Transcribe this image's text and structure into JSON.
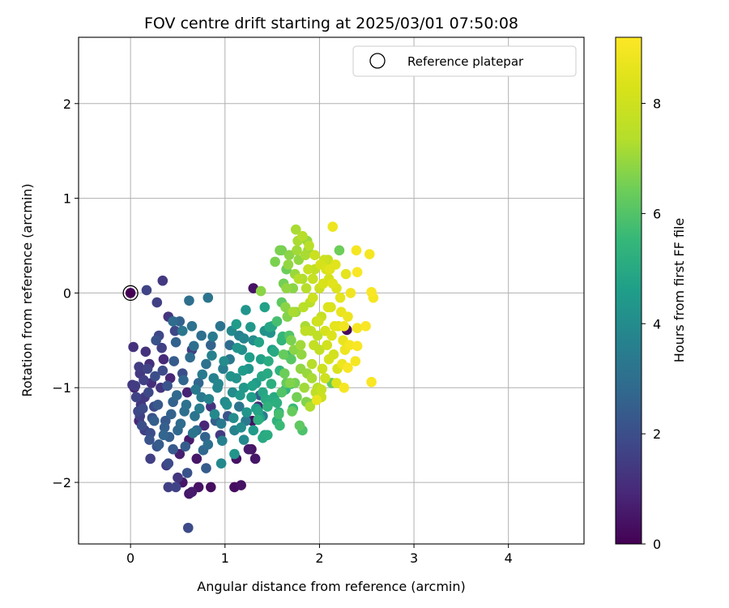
{
  "chart_data": {
    "type": "scatter",
    "title": "FOV centre drift starting at 2025/03/01 07:50:08",
    "xlabel": "Angular distance from reference (arcmin)",
    "ylabel": "Rotation from reference (arcmin)",
    "xlim": [
      -0.55,
      4.8
    ],
    "ylim": [
      -2.65,
      2.7
    ],
    "xticks": [
      0,
      1,
      2,
      3,
      4
    ],
    "yticks": [
      -2,
      -1,
      0,
      1,
      2
    ],
    "grid": true,
    "legend": {
      "placement": "top-right",
      "entries": [
        "Reference platepar"
      ]
    },
    "colorbar": {
      "label": "Hours from first FF file",
      "range": [
        0,
        9.2
      ],
      "ticks": [
        0,
        2,
        4,
        6,
        8
      ],
      "colormap": "viridis"
    },
    "reference_point": {
      "x": 0,
      "y": 0,
      "label": "Reference platepar"
    },
    "points_c": [
      [
        0.03,
        -0.57,
        1.2
      ],
      [
        0.05,
        -0.98,
        1.5
      ],
      [
        0.08,
        -1.25,
        1.8
      ],
      [
        0.1,
        -1.3,
        1.6
      ],
      [
        0.12,
        -1.4,
        2.0
      ],
      [
        0.15,
        -1.1,
        1.4
      ],
      [
        0.18,
        -0.8,
        1.7
      ],
      [
        0.2,
        -1.55,
        2.2
      ],
      [
        0.22,
        -0.95,
        1.1
      ],
      [
        0.25,
        -1.2,
        1.9
      ],
      [
        0.27,
        -0.5,
        2.1
      ],
      [
        0.3,
        -1.6,
        2.4
      ],
      [
        0.32,
        -1.0,
        1.3
      ],
      [
        0.35,
        -0.7,
        1.0
      ],
      [
        0.37,
        -1.35,
        2.3
      ],
      [
        0.4,
        -1.8,
        1.9
      ],
      [
        0.42,
        -0.9,
        0.9
      ],
      [
        0.45,
        -1.15,
        2.6
      ],
      [
        0.47,
        -0.4,
        1.8
      ],
      [
        0.5,
        -1.45,
        2.8
      ],
      [
        0.52,
        -1.7,
        0.7
      ],
      [
        0.55,
        -0.85,
        2.0
      ],
      [
        0.57,
        -1.25,
        3.0
      ],
      [
        0.6,
        -1.05,
        0.8
      ],
      [
        0.62,
        -1.55,
        0.6
      ],
      [
        0.65,
        -0.6,
        1.5
      ],
      [
        0.68,
        -1.3,
        3.2
      ],
      [
        0.7,
        -1.75,
        0.5
      ],
      [
        0.72,
        -0.95,
        2.7
      ],
      [
        0.75,
        -1.1,
        3.4
      ],
      [
        0.78,
        -1.4,
        0.9
      ],
      [
        0.8,
        -0.75,
        3.1
      ],
      [
        0.82,
        -1.6,
        3.0
      ],
      [
        0.85,
        -1.2,
        1.2
      ],
      [
        0.88,
        -0.9,
        3.6
      ],
      [
        0.9,
        -1.35,
        2.5
      ],
      [
        0.92,
        -1.0,
        3.8
      ],
      [
        0.95,
        -1.5,
        1.4
      ],
      [
        0.98,
        -0.8,
        3.5
      ],
      [
        1.0,
        -1.15,
        3.9
      ],
      [
        1.03,
        -1.3,
        2.2
      ],
      [
        1.05,
        -0.7,
        3.3
      ],
      [
        1.08,
        -1.05,
        4.0
      ],
      [
        1.1,
        -1.45,
        3.7
      ],
      [
        1.12,
        -0.9,
        4.2
      ],
      [
        1.15,
        -1.2,
        3.2
      ],
      [
        1.18,
        -0.6,
        4.1
      ],
      [
        1.2,
        -1.0,
        4.4
      ],
      [
        1.22,
        -1.35,
        3.4
      ],
      [
        1.25,
        -0.8,
        4.3
      ],
      [
        1.28,
        -1.1,
        4.6
      ],
      [
        1.3,
        -0.5,
        4.0
      ],
      [
        1.33,
        -0.95,
        4.5
      ],
      [
        1.35,
        -1.25,
        4.8
      ],
      [
        1.38,
        -0.7,
        4.7
      ],
      [
        1.4,
        -1.05,
        4.9
      ],
      [
        1.42,
        -0.4,
        4.2
      ],
      [
        1.45,
        -0.85,
        5.0
      ],
      [
        1.48,
        -1.15,
        5.1
      ],
      [
        1.5,
        -0.6,
        4.6
      ],
      [
        1.15,
        -0.45,
        3.6
      ],
      [
        1.05,
        -0.55,
        2.9
      ],
      [
        0.95,
        -0.35,
        3.2
      ],
      [
        0.85,
        -0.55,
        2.6
      ],
      [
        0.75,
        -0.45,
        3.0
      ],
      [
        0.65,
        -0.35,
        3.1
      ],
      [
        0.55,
        -0.4,
        3.3
      ],
      [
        0.45,
        -0.3,
        2.9
      ],
      [
        0.6,
        -1.9,
        2.1
      ],
      [
        0.8,
        -1.85,
        2.4
      ],
      [
        0.5,
        -1.95,
        1.3
      ],
      [
        0.4,
        -2.05,
        1.6
      ],
      [
        0.65,
        -2.1,
        0.6
      ],
      [
        0.72,
        -2.05,
        0.4
      ],
      [
        0.55,
        -2.0,
        0.5
      ],
      [
        1.1,
        -1.7,
        4.3
      ],
      [
        1.2,
        -1.55,
        3.9
      ],
      [
        1.3,
        -1.45,
        4.5
      ],
      [
        1.25,
        -1.65,
        0.6
      ],
      [
        1.32,
        -1.75,
        0.5
      ],
      [
        1.45,
        -1.5,
        5.1
      ],
      [
        1.55,
        -1.35,
        5.3
      ],
      [
        0.3,
        -0.45,
        1.8
      ],
      [
        0.2,
        -0.75,
        1.1
      ],
      [
        0.1,
        -0.85,
        1.4
      ],
      [
        0.15,
        -1.45,
        1.6
      ],
      [
        0.25,
        -1.35,
        2.5
      ],
      [
        0.35,
        -1.5,
        2.7
      ],
      [
        0.45,
        -1.65,
        2.3
      ],
      [
        0.7,
        -1.45,
        2.9
      ]
    ],
    "points_d": [
      [
        0.02,
        -0.97,
        1.4
      ],
      [
        0.06,
        -1.1,
        1.7
      ],
      [
        0.09,
        -0.78,
        1.5
      ],
      [
        0.13,
        -1.22,
        1.9
      ],
      [
        0.16,
        -0.62,
        1.2
      ],
      [
        0.19,
        -1.05,
        1.8
      ],
      [
        0.23,
        -1.32,
        2.1
      ],
      [
        0.26,
        -0.88,
        2.0
      ],
      [
        0.29,
        -1.18,
        2.3
      ],
      [
        0.33,
        -0.58,
        1.6
      ],
      [
        0.36,
        -1.42,
        2.5
      ],
      [
        0.39,
        -0.98,
        2.2
      ],
      [
        0.43,
        -1.28,
        2.6
      ],
      [
        0.46,
        -0.72,
        2.4
      ],
      [
        0.49,
        -1.08,
        2.8
      ],
      [
        0.53,
        -1.38,
        2.9
      ],
      [
        0.56,
        -0.92,
        2.7
      ],
      [
        0.59,
        -1.18,
        3.1
      ],
      [
        0.63,
        -0.68,
        2.9
      ],
      [
        0.66,
        -1.48,
        3.2
      ],
      [
        0.69,
        -1.02,
        3.3
      ],
      [
        0.73,
        -1.22,
        3.5
      ],
      [
        0.76,
        -0.86,
        3.4
      ],
      [
        0.79,
        -1.52,
        2.6
      ],
      [
        0.83,
        -1.12,
        3.7
      ],
      [
        0.86,
        -0.66,
        3.6
      ],
      [
        0.89,
        -1.28,
        3.9
      ],
      [
        0.93,
        -0.96,
        3.8
      ],
      [
        0.96,
        -1.38,
        3.4
      ],
      [
        0.99,
        -0.72,
        4.0
      ],
      [
        1.02,
        -1.18,
        4.1
      ],
      [
        1.06,
        -0.88,
        4.2
      ],
      [
        1.09,
        -1.32,
        4.0
      ],
      [
        1.13,
        -0.58,
        4.3
      ],
      [
        1.16,
        -1.08,
        4.4
      ],
      [
        1.19,
        -0.82,
        4.5
      ],
      [
        1.23,
        -1.26,
        4.3
      ],
      [
        1.26,
        -0.68,
        4.6
      ],
      [
        1.29,
        -0.98,
        4.7
      ],
      [
        1.33,
        -1.22,
        4.6
      ],
      [
        1.36,
        -0.52,
        4.8
      ],
      [
        1.39,
        -0.88,
        4.9
      ],
      [
        1.43,
        -1.12,
        5.0
      ],
      [
        1.46,
        -0.72,
        5.1
      ],
      [
        1.49,
        -0.96,
        5.2
      ],
      [
        1.52,
        -0.62,
        5.0
      ],
      [
        1.55,
        -1.16,
        5.2
      ],
      [
        1.58,
        -0.82,
        5.3
      ],
      [
        1.61,
        -0.46,
        5.5
      ],
      [
        1.64,
        -1.02,
        5.4
      ],
      [
        0.11,
        -1.18,
        1.3
      ],
      [
        0.14,
        -0.92,
        1.6
      ],
      [
        0.21,
        -1.48,
        2.0
      ],
      [
        0.28,
        -1.62,
        2.2
      ],
      [
        0.34,
        -0.82,
        1.9
      ],
      [
        0.41,
        -1.52,
        2.5
      ],
      [
        0.48,
        -0.52,
        2.6
      ],
      [
        0.58,
        -1.62,
        2.4
      ],
      [
        0.67,
        -0.56,
        3.0
      ],
      [
        0.77,
        -1.66,
        2.8
      ],
      [
        0.87,
        -0.46,
        3.4
      ],
      [
        0.97,
        -1.56,
        3.6
      ],
      [
        1.07,
        -0.4,
        3.9
      ],
      [
        1.17,
        -1.42,
        4.0
      ],
      [
        1.27,
        -0.36,
        4.4
      ],
      [
        1.37,
        -1.32,
        4.7
      ],
      [
        1.47,
        -0.36,
        4.9
      ],
      [
        1.57,
        -1.26,
        5.2
      ],
      [
        1.67,
        -0.66,
        5.5
      ],
      [
        1.7,
        -0.96,
        5.6
      ]
    ],
    "points_a": [
      [
        1.55,
        -0.3,
        5.8
      ],
      [
        1.6,
        -0.1,
        6.2
      ],
      [
        1.62,
        0.1,
        6.5
      ],
      [
        1.65,
        0.25,
        6.4
      ],
      [
        1.68,
        -0.45,
        6.0
      ],
      [
        1.7,
        -0.7,
        6.1
      ],
      [
        1.72,
        0.05,
        6.8
      ],
      [
        1.75,
        -0.2,
        7.0
      ],
      [
        1.78,
        0.35,
        6.9
      ],
      [
        1.8,
        -0.55,
        7.1
      ],
      [
        1.82,
        0.15,
        7.3
      ],
      [
        1.85,
        -0.35,
        7.2
      ],
      [
        1.88,
        0.45,
        7.0
      ],
      [
        1.9,
        -0.1,
        7.5
      ],
      [
        1.92,
        -0.75,
        7.4
      ],
      [
        1.95,
        0.25,
        7.7
      ],
      [
        1.98,
        -0.45,
        7.6
      ],
      [
        2.0,
        0.05,
        7.9
      ],
      [
        2.02,
        -0.25,
        7.8
      ],
      [
        2.05,
        0.35,
        8.0
      ],
      [
        2.08,
        -0.55,
        8.1
      ],
      [
        2.1,
        0.15,
        8.2
      ],
      [
        2.12,
        -0.15,
        8.3
      ],
      [
        2.15,
        -0.65,
        8.1
      ],
      [
        2.18,
        0.05,
        8.4
      ],
      [
        2.2,
        -0.35,
        8.5
      ],
      [
        2.22,
        -0.05,
        8.6
      ],
      [
        2.25,
        -0.5,
        8.7
      ],
      [
        2.28,
        0.2,
        8.6
      ],
      [
        2.3,
        -0.25,
        8.8
      ],
      [
        1.58,
        0.45,
        6.6
      ],
      [
        1.67,
        0.3,
        6.9
      ],
      [
        1.73,
        -0.6,
        6.8
      ],
      [
        1.77,
        0.55,
        7.2
      ],
      [
        1.83,
        -0.15,
        7.5
      ],
      [
        1.87,
        -0.85,
        7.0
      ],
      [
        1.93,
        0.15,
        7.8
      ],
      [
        1.97,
        -0.3,
        7.9
      ],
      [
        2.03,
        -0.8,
        8.0
      ],
      [
        2.07,
        0.25,
        8.3
      ],
      [
        2.13,
        -0.45,
        8.4
      ],
      [
        2.17,
        0.3,
        8.5
      ],
      [
        2.23,
        -0.2,
        8.7
      ],
      [
        2.27,
        -0.6,
        8.8
      ],
      [
        2.33,
        0.0,
        8.9
      ],
      [
        1.63,
        -0.85,
        6.4
      ],
      [
        1.69,
        -0.95,
        6.7
      ],
      [
        1.76,
        -1.1,
        6.5
      ],
      [
        1.84,
        -1.0,
        7.1
      ],
      [
        1.9,
        -1.2,
        7.3
      ],
      [
        1.96,
        -1.05,
        7.6
      ],
      [
        2.02,
        -1.1,
        7.9
      ],
      [
        1.66,
        -0.25,
        6.7
      ],
      [
        1.74,
        0.2,
        7.0
      ],
      [
        1.86,
        0.05,
        7.4
      ],
      [
        1.94,
        -0.55,
        7.7
      ],
      [
        2.06,
        -0.4,
        8.2
      ],
      [
        2.14,
        0.1,
        8.5
      ],
      [
        2.19,
        -0.8,
        8.3
      ],
      [
        2.26,
        -0.35,
        8.9
      ],
      [
        1.6,
        -1.05,
        6.0
      ],
      [
        1.71,
        -1.25,
        6.3
      ],
      [
        1.79,
        -1.4,
        6.2
      ],
      [
        1.81,
        -0.65,
        6.9
      ],
      [
        1.91,
        -0.4,
        7.6
      ]
    ],
    "points_b": [
      [
        1.65,
        0.05,
        6.9
      ],
      [
        1.72,
        -0.2,
        7.2
      ],
      [
        1.78,
        0.15,
        7.4
      ],
      [
        1.85,
        -0.4,
        7.6
      ],
      [
        1.88,
        0.25,
        7.8
      ],
      [
        1.93,
        -0.05,
        8.0
      ],
      [
        1.99,
        -0.3,
        8.1
      ],
      [
        2.04,
        0.1,
        8.3
      ],
      [
        2.09,
        -0.15,
        8.4
      ],
      [
        2.16,
        -0.35,
        8.6
      ],
      [
        1.68,
        0.4,
        6.8
      ],
      [
        1.76,
        0.45,
        7.1
      ],
      [
        1.82,
        0.6,
        7.3
      ],
      [
        1.89,
        0.5,
        7.5
      ],
      [
        1.95,
        0.4,
        7.9
      ],
      [
        2.01,
        0.3,
        8.2
      ],
      [
        2.11,
        0.25,
        8.5
      ],
      [
        1.7,
        -0.5,
        6.6
      ],
      [
        1.8,
        -0.8,
        6.9
      ],
      [
        1.92,
        -0.9,
        7.2
      ],
      [
        2.0,
        -0.6,
        7.7
      ],
      [
        2.1,
        -0.7,
        8.2
      ],
      [
        2.18,
        -0.95,
        8.4
      ],
      [
        2.24,
        -0.75,
        8.8
      ],
      [
        1.62,
        -0.65,
        6.3
      ],
      [
        1.74,
        -0.95,
        6.5
      ],
      [
        1.86,
        -1.15,
        6.7
      ],
      [
        1.98,
        -1.0,
        7.5
      ],
      [
        2.06,
        -0.9,
        8.0
      ],
      [
        1.64,
        -0.15,
        6.8
      ]
    ],
    "points_e": [
      [
        0.17,
        0.03,
        1.7
      ],
      [
        0.34,
        0.13,
        1.4
      ],
      [
        0.28,
        -0.1,
        1.6
      ],
      [
        0.4,
        -0.25,
        1.3
      ],
      [
        0.52,
        -0.3,
        2.6
      ],
      [
        0.62,
        -0.08,
        3.0
      ],
      [
        0.82,
        -0.05,
        3.2
      ],
      [
        1.22,
        -0.18,
        4.3
      ],
      [
        1.12,
        -0.33,
        4.5
      ],
      [
        1.2,
        -0.48,
        3.8
      ],
      [
        0.04,
        -1.0,
        0.8
      ],
      [
        0.09,
        -1.35,
        0.9
      ],
      [
        0.21,
        -1.75,
        1.6
      ],
      [
        0.38,
        -1.82,
        1.5
      ],
      [
        0.61,
        -2.48,
        1.9
      ],
      [
        0.48,
        -2.05,
        1.7
      ],
      [
        0.62,
        -2.12,
        0.5
      ],
      [
        0.85,
        -2.05,
        0.3
      ],
      [
        0.96,
        -1.8,
        3.9
      ],
      [
        1.1,
        -2.05,
        0.3
      ],
      [
        1.17,
        -2.03,
        0.4
      ],
      [
        1.12,
        -1.75,
        0.4
      ],
      [
        1.29,
        -1.35,
        0.3
      ],
      [
        1.35,
        -1.2,
        1.0
      ],
      [
        1.4,
        -1.3,
        3.5
      ],
      [
        1.28,
        -1.65,
        0.4
      ],
      [
        1.37,
        -1.08,
        2.5
      ],
      [
        1.42,
        -1.5,
        4.8
      ],
      [
        1.52,
        -1.1,
        5.0
      ],
      [
        1.3,
        0.05,
        0.4
      ],
      [
        1.42,
        -0.15,
        4.7
      ],
      [
        1.38,
        0.02,
        6.8
      ],
      [
        1.5,
        -0.35,
        4.9
      ],
      [
        1.48,
        -0.42,
        4.2
      ],
      [
        1.53,
        0.33,
        6.6
      ],
      [
        1.6,
        0.45,
        6.5
      ],
      [
        1.75,
        0.67,
        7.2
      ],
      [
        1.82,
        0.6,
        7.4
      ],
      [
        1.85,
        0.4,
        7.2
      ],
      [
        1.87,
        0.55,
        7.0
      ],
      [
        2.14,
        0.7,
        8.8
      ],
      [
        2.09,
        0.35,
        7.8
      ],
      [
        2.21,
        0.45,
        6.4
      ],
      [
        2.39,
        0.45,
        9.0
      ],
      [
        2.4,
        0.22,
        9.1
      ],
      [
        2.53,
        0.41,
        9.0
      ],
      [
        2.55,
        0.01,
        9.1
      ],
      [
        2.57,
        -0.05,
        9.0
      ],
      [
        2.49,
        -0.35,
        9.1
      ],
      [
        2.4,
        -0.37,
        9.0
      ],
      [
        2.29,
        -0.39,
        0.2
      ],
      [
        2.32,
        -0.55,
        9.0
      ],
      [
        2.4,
        -0.56,
        9.1
      ],
      [
        2.38,
        -0.72,
        9.0
      ],
      [
        2.3,
        -0.79,
        9.1
      ],
      [
        2.26,
        -1.0,
        9.0
      ],
      [
        2.55,
        -0.94,
        9.1
      ],
      [
        2.13,
        -0.95,
        6.3
      ],
      [
        2.02,
        -1.02,
        7.8
      ],
      [
        1.97,
        -1.13,
        8.7
      ],
      [
        1.9,
        -1.17,
        6.6
      ],
      [
        1.82,
        -1.45,
        5.9
      ],
      [
        1.72,
        -1.22,
        5.6
      ],
      [
        1.58,
        -1.4,
        5.6
      ],
      [
        1.57,
        -1.28,
        5.8
      ],
      [
        1.4,
        -1.53,
        5.0
      ],
      [
        1.35,
        -1.34,
        5.2
      ],
      [
        1.45,
        -1.2,
        5.3
      ],
      [
        1.6,
        -0.5,
        5.4
      ],
      [
        1.65,
        -0.95,
        6.3
      ]
    ]
  }
}
